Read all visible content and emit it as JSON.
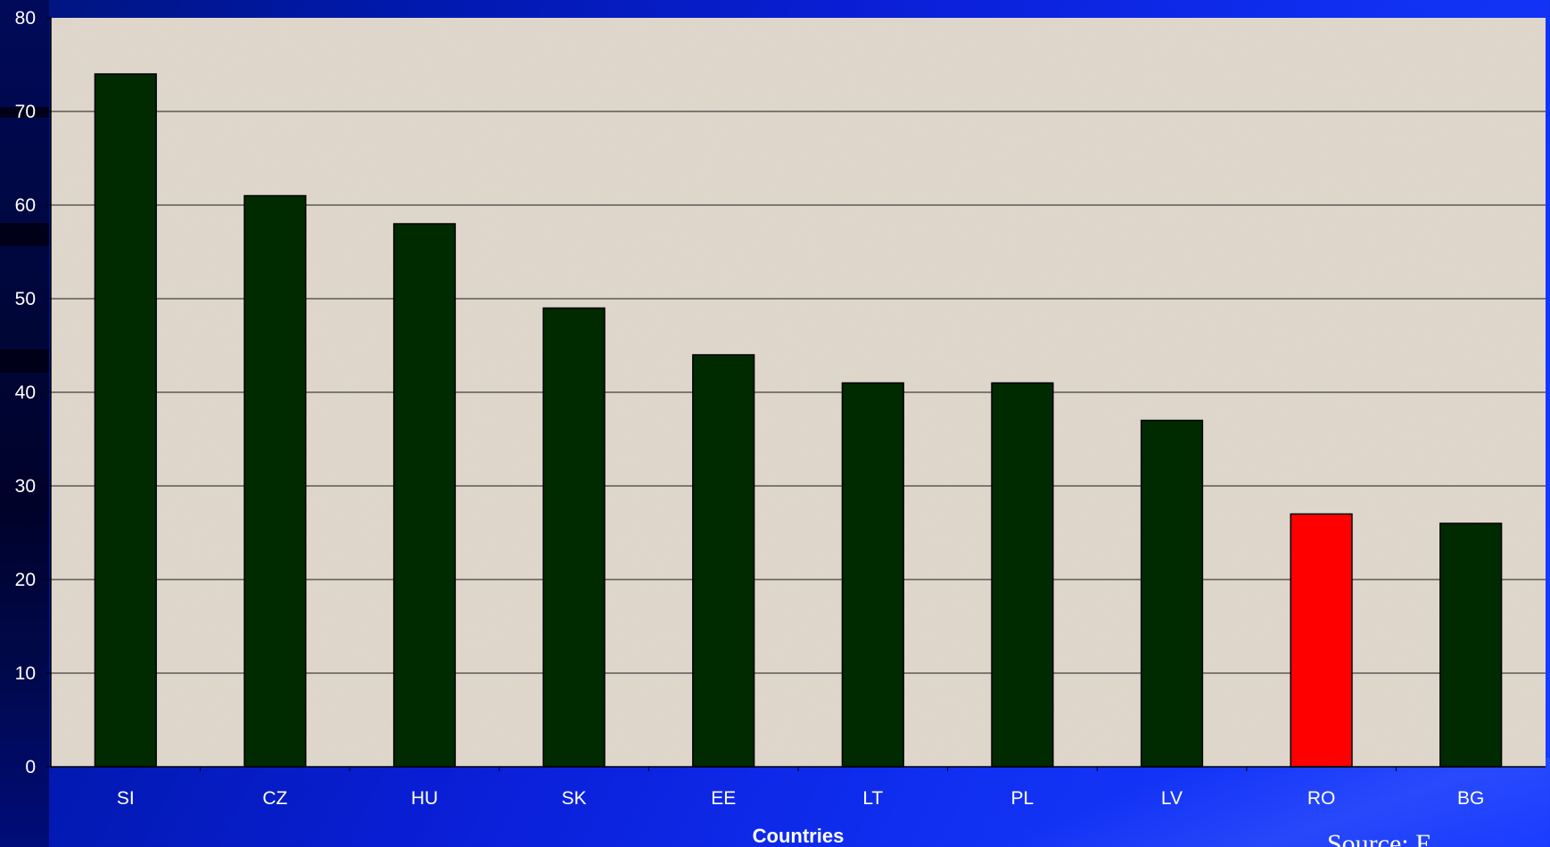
{
  "chart_data": {
    "type": "bar",
    "categories": [
      "SI",
      "CZ",
      "HU",
      "SK",
      "EE",
      "LT",
      "PL",
      "LV",
      "RO",
      "BG"
    ],
    "values": [
      74,
      61,
      58,
      49,
      44,
      41,
      41,
      37,
      27,
      26
    ],
    "highlight": {
      "category": "RO",
      "color": "#ff0000"
    },
    "bar_color": "#002a00",
    "title": "",
    "xlabel": "Countries",
    "ylabel": "",
    "ylim": [
      0,
      80
    ],
    "yticks": [
      0,
      10,
      20,
      30,
      40,
      50,
      60,
      70,
      80
    ],
    "grid": true,
    "legend": "none"
  },
  "footer": {
    "source_text": "Source: E"
  }
}
